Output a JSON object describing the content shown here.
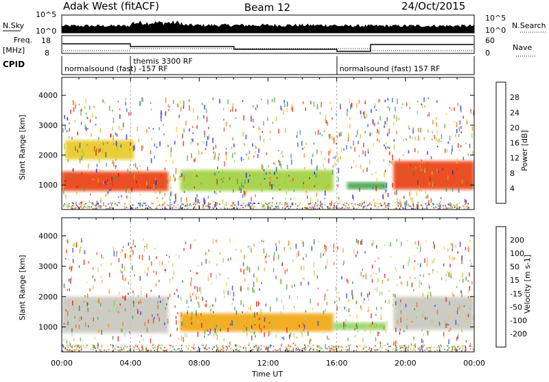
{
  "header": {
    "station": "Adak West (fitACF)",
    "beam": "Beam 12",
    "date": "24/Oct/2015"
  },
  "noise_panel": {
    "left_label": "N.Sky",
    "right_label": "N.Search",
    "left_ticks": [
      "10^5",
      "10^0"
    ],
    "right_ticks": [
      "10^5",
      "10^0"
    ]
  },
  "freq_panel": {
    "left_label_1": "Freq.",
    "left_label_2": "[MHz]",
    "left_ticks": [
      "18",
      "8"
    ],
    "right_label": "Nave",
    "right_ticks": [
      "60",
      "0"
    ]
  },
  "cpid_panel": {
    "label": "CPID",
    "segments": [
      {
        "start": 0,
        "text": "normalsound (fast) -157 RF"
      },
      {
        "start": 4,
        "text": "themis 3300 RF"
      },
      {
        "start": 16,
        "text": "normalsound (fast) 157 RF"
      }
    ]
  },
  "chart_data": [
    {
      "type": "heatmap",
      "title": "Power",
      "ylabel": "Slant Range [km]",
      "xlabel": "Time UT",
      "xlim": [
        0,
        24
      ],
      "ylim": [
        180,
        4600
      ],
      "y_ticks": [
        "1000",
        "2000",
        "3000",
        "4000"
      ],
      "x_ticks": [
        "00:00",
        "04:00",
        "08:00",
        "12:00",
        "16:00",
        "20:00",
        "00:00"
      ],
      "colorbar": {
        "label": "Power [dB]",
        "ticks": [
          "28",
          "24",
          "20",
          "16",
          "12",
          "8",
          "4"
        ],
        "colors": [
          "#0000ff",
          "#1a47c0",
          "#2e8b8b",
          "#3ca03c",
          "#9acd32",
          "#e6c619",
          "#f5a300",
          "#f06e00",
          "#e83000",
          "#d80000"
        ]
      },
      "regions": [
        {
          "t": [
            0,
            6.2
          ],
          "r": [
            800,
            1450
          ],
          "v": 27
        },
        {
          "t": [
            0.2,
            4.2
          ],
          "r": [
            1850,
            2500
          ],
          "v": 17
        },
        {
          "t": [
            6.9,
            15.8
          ],
          "r": [
            800,
            1500
          ],
          "v": 13
        },
        {
          "t": [
            16.6,
            18.9
          ],
          "r": [
            850,
            1100
          ],
          "v": 12
        },
        {
          "t": [
            19.3,
            24
          ],
          "r": [
            850,
            1800
          ],
          "v": 26
        }
      ]
    },
    {
      "type": "heatmap",
      "title": "Velocity",
      "ylabel": "Slant Range [km]",
      "xlabel": "Time UT",
      "xlim": [
        0,
        24
      ],
      "ylim": [
        180,
        4600
      ],
      "y_ticks": [
        "1000",
        "2000",
        "3000",
        "4000"
      ],
      "x_ticks": [
        "00:00",
        "04:00",
        "08:00",
        "12:00",
        "16:00",
        "20:00",
        "00:00"
      ],
      "colorbar": {
        "label": "Velocity [m s-1]",
        "ticks": [
          "200",
          "100",
          "50",
          "15",
          "-15",
          "-50",
          "-100",
          "-200"
        ],
        "colors": [
          "#1e2ad8",
          "#2e6e2e",
          "#3ca03c",
          "#8fd35a",
          "#c4c4bc",
          "#f5c842",
          "#f0a000",
          "#f06000",
          "#e82e00",
          "#d80000"
        ]
      },
      "regions": [
        {
          "t": [
            0,
            6.2
          ],
          "r": [
            800,
            2000
          ],
          "v": 0
        },
        {
          "t": [
            6.9,
            15.8
          ],
          "r": [
            850,
            1450
          ],
          "v": -40
        },
        {
          "t": [
            15.8,
            18.9
          ],
          "r": [
            900,
            1150
          ],
          "v": 40
        },
        {
          "t": [
            19.3,
            24
          ],
          "r": [
            900,
            2000
          ],
          "v": 0
        }
      ]
    }
  ]
}
